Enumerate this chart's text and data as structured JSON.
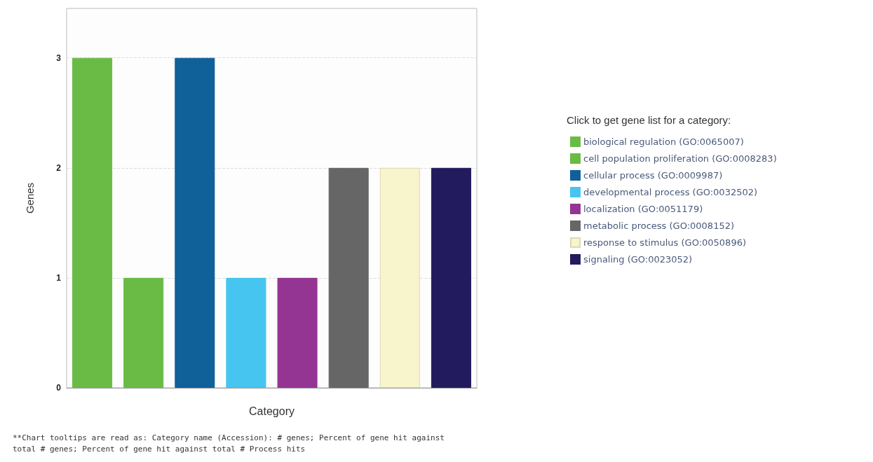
{
  "chart_data": {
    "type": "bar",
    "xlabel": "Category",
    "ylabel": "Genes",
    "legend_title": "Click to get gene list for a category:",
    "categories": [
      null,
      null,
      null,
      null,
      null,
      null,
      null,
      null
    ],
    "series": [
      {
        "name": "biological regulation (GO:0065007)",
        "color": "#6abb45",
        "values": [
          3,
          null,
          null,
          null,
          null,
          null,
          null,
          null
        ]
      },
      {
        "name": "cell population proliferation (GO:0008283)",
        "color": "#6abb45",
        "values": [
          null,
          1,
          null,
          null,
          null,
          null,
          null,
          null
        ]
      },
      {
        "name": "cellular process (GO:0009987)",
        "color": "#10609a",
        "values": [
          null,
          null,
          3,
          null,
          null,
          null,
          null,
          null
        ]
      },
      {
        "name": "developmental process (GO:0032502)",
        "color": "#45c5f0",
        "values": [
          null,
          null,
          null,
          1,
          null,
          null,
          null,
          null
        ]
      },
      {
        "name": "localization (GO:0051179)",
        "color": "#943594",
        "values": [
          null,
          null,
          null,
          null,
          1,
          null,
          null,
          null
        ]
      },
      {
        "name": "metabolic process (GO:0008152)",
        "color": "#666666",
        "values": [
          null,
          null,
          null,
          null,
          null,
          2,
          null,
          null
        ]
      },
      {
        "name": "response to stimulus (GO:0050896)",
        "color": "#f8f4cc",
        "values": [
          null,
          null,
          null,
          null,
          null,
          null,
          2,
          null
        ]
      },
      {
        "name": "signaling (GO:0023052)",
        "color": "#221c5e",
        "values": [
          null,
          null,
          null,
          null,
          null,
          null,
          null,
          2
        ]
      }
    ],
    "ylim": [
      0,
      3.45
    ],
    "yticks": [
      0,
      1,
      2,
      3
    ],
    "grid": "y",
    "legend": "right",
    "annotations": [
      "**Chart tooltips are read as: Category name (Accession): # genes; Percent of gene hit against total # genes; Percent of gene hit against total # Process hits"
    ]
  }
}
